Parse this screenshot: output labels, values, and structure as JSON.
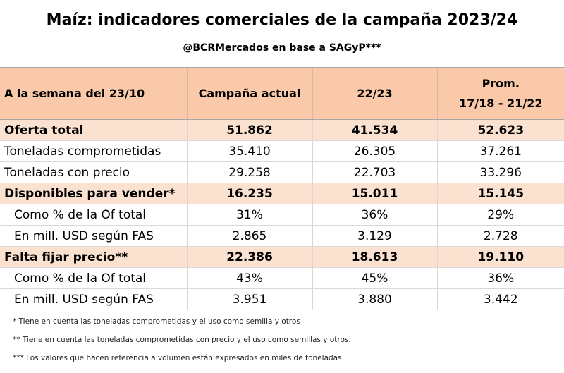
{
  "title": "Maíz: indicadores comerciales de la campaña 2023/24",
  "subtitle": "@BCRMercados en base a SAGyP***",
  "table": {
    "headers": [
      "A la semana del 23/10",
      "Campaña actual",
      "22/23"
    ],
    "header_prom_line1": "Prom.",
    "header_prom_line2": "17/18 - 21/22",
    "rows": [
      {
        "label": "Oferta total",
        "v1": "51.862",
        "v2": "41.534",
        "v3": "52.623"
      },
      {
        "label": "Toneladas comprometidas",
        "v1": "35.410",
        "v2": "26.305",
        "v3": "37.261"
      },
      {
        "label": "Toneladas con precio",
        "v1": "29.258",
        "v2": "22.703",
        "v3": "33.296"
      },
      {
        "label": "Disponibles para vender*",
        "v1": "16.235",
        "v2": "15.011",
        "v3": "15.145"
      },
      {
        "label": "Como % de la Of total",
        "v1": "31%",
        "v2": "36%",
        "v3": "29%"
      },
      {
        "label": "En mill. USD según FAS",
        "v1": "2.865",
        "v2": "3.129",
        "v3": "2.728"
      },
      {
        "label": "Falta fijar precio**",
        "v1": "22.386",
        "v2": "18.613",
        "v3": "19.110"
      },
      {
        "label": "Como % de la Of total",
        "v1": "43%",
        "v2": "45%",
        "v3": "36%"
      },
      {
        "label": "En mill. USD según FAS",
        "v1": "3.951",
        "v2": "3.880",
        "v3": "3.442"
      }
    ]
  },
  "notes": [
    "* Tiene en cuenta las toneladas comprometidas y el uso como semilla y otros",
    "** Tiene en cuenta las toneladas comprometidas con precio y el uso como semillas y otros.",
    "*** Los valores que hacen referencia a volumen están expresados en miles de toneladas"
  ]
}
